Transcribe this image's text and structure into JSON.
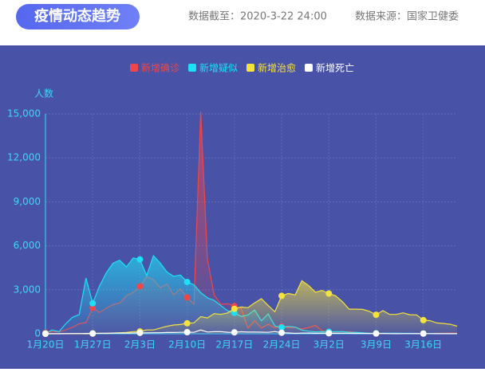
{
  "header": {
    "title": "疫情动态趋势",
    "updated": "数据截至：2020-3-22 24:00",
    "source": "数据来源：国家卫健委"
  },
  "chart_data": {
    "type": "line",
    "y_label": "人数",
    "categories": [
      "1月20日",
      null,
      null,
      null,
      null,
      null,
      null,
      "1月27日",
      null,
      null,
      null,
      null,
      null,
      null,
      "2月3日",
      null,
      null,
      null,
      null,
      null,
      null,
      "2月10日",
      null,
      null,
      null,
      null,
      null,
      null,
      "2月17日",
      null,
      null,
      null,
      null,
      null,
      null,
      "2月24日",
      null,
      null,
      null,
      null,
      null,
      null,
      "3月2日",
      null,
      null,
      null,
      null,
      null,
      null,
      "3月9日",
      null,
      null,
      null,
      null,
      null,
      null,
      "3月16日",
      null,
      null,
      null,
      null,
      null
    ],
    "series": [
      {
        "name": "新增确诊",
        "color": "#f0454b",
        "values": [
          77,
          149,
          131,
          259,
          444,
          688,
          769,
          1771,
          1459,
          1737,
          1982,
          2102,
          2590,
          2829,
          3235,
          3887,
          3694,
          3143,
          3399,
          2656,
          3062,
          2478,
          2015,
          15152,
          5090,
          2641,
          2009,
          2048,
          1886,
          1749,
          394,
          889,
          397,
          648,
          409,
          508,
          406,
          433,
          327,
          427,
          573,
          202,
          125,
          119,
          139,
          143,
          99,
          44,
          40,
          19,
          24,
          15,
          8,
          11,
          20,
          16,
          21,
          13,
          34,
          39,
          41,
          46
        ]
      },
      {
        "name": "新增疑似",
        "color": "#1ee0f5",
        "values": [
          27,
          257,
          136,
          680,
          1118,
          1309,
          3806,
          2077,
          3248,
          4148,
          4812,
          5019,
          4562,
          5173,
          5072,
          3971,
          5328,
          4833,
          4214,
          3916,
          4008,
          3536,
          3342,
          2807,
          2450,
          2277,
          1918,
          1563,
          1432,
          1185,
          1277,
          1614,
          882,
          1361,
          530,
          439,
          508,
          452,
          248,
          174,
          132,
          141,
          129,
          143,
          143,
          102,
          99,
          60,
          36,
          31,
          33,
          33,
          33,
          25,
          27,
          22,
          18,
          17,
          17,
          12,
          13,
          8
        ]
      },
      {
        "name": "新增治愈",
        "color": "#f5e23c",
        "values": [
          0,
          0,
          0,
          6,
          3,
          11,
          2,
          9,
          43,
          21,
          47,
          72,
          85,
          147,
          157,
          262,
          261,
          387,
          510,
          600,
          632,
          716,
          744,
          1171,
          1081,
          1373,
          1323,
          1425,
          1701,
          1824,
          1779,
          2109,
          2393,
          1934,
          1502,
          2589,
          2750,
          2652,
          3622,
          3296,
          2837,
          2956,
          2744,
          2590,
          2189,
          1681,
          1678,
          1661,
          1535,
          1297,
          1578,
          1318,
          1318,
          1430,
          1301,
          1286,
          930,
          894,
          740,
          701,
          645,
          518
        ]
      },
      {
        "name": "新增死亡",
        "color": "#ffffff",
        "values": [
          0,
          3,
          8,
          8,
          16,
          15,
          24,
          26,
          26,
          38,
          43,
          46,
          45,
          57,
          64,
          65,
          73,
          73,
          86,
          89,
          97,
          108,
          97,
          254,
          121,
          143,
          142,
          105,
          98,
          136,
          114,
          118,
          109,
          98,
          150,
          71,
          52,
          29,
          44,
          47,
          35,
          42,
          31,
          38,
          31,
          30,
          28,
          27,
          22,
          17,
          22,
          11,
          7,
          13,
          10,
          14,
          13,
          11,
          8,
          3,
          7,
          6
        ]
      }
    ],
    "ylim": [
      0,
      15000
    ],
    "yticks": [
      0,
      {
        "value": 3000,
        "label": "3,000"
      },
      {
        "value": 6000,
        "label": "6,000"
      },
      {
        "value": 9000,
        "label": "9,000"
      },
      {
        "value": 12000,
        "label": "12,000"
      },
      {
        "value": 15000,
        "label": "15,000"
      }
    ],
    "grid": true
  }
}
